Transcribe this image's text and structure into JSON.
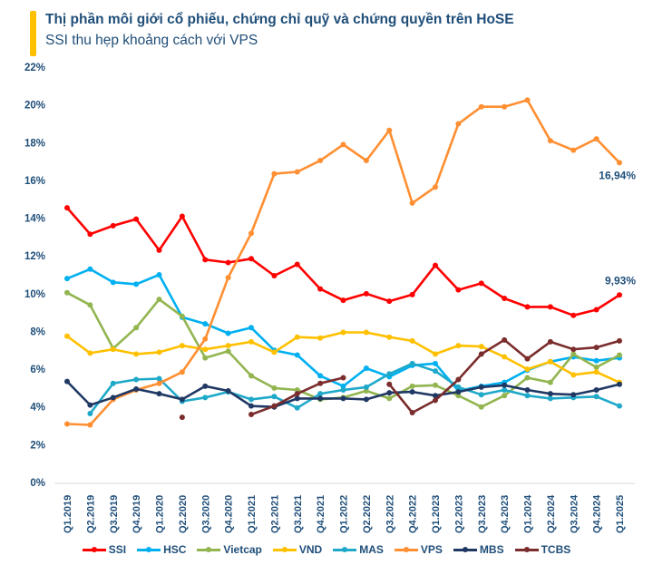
{
  "header": {
    "title": "Thị phần môi giới cổ phiếu, chứng chỉ quỹ và chứng quyền trên HoSE",
    "subtitle": "SSI thu hẹp khoảng cách với VPS",
    "accent_color": "#FFC000"
  },
  "chart_data": {
    "type": "line",
    "title": "Thị phần môi giới cổ phiếu, chứng chỉ quỹ và chứng quyền trên HoSE",
    "subtitle": "SSI thu hẹp khoảng cách với VPS",
    "xlabel": "",
    "ylabel": "",
    "ylim": [
      0,
      22
    ],
    "y_ticks": [
      "0%",
      "2%",
      "4%",
      "6%",
      "8%",
      "10%",
      "12%",
      "14%",
      "16%",
      "18%",
      "20%",
      "22%"
    ],
    "y_tick_values": [
      0,
      2,
      4,
      6,
      8,
      10,
      12,
      14,
      16,
      18,
      20,
      22
    ],
    "grid": false,
    "legend_position": "bottom",
    "categories": [
      "Q1.2019",
      "Q2.2019",
      "Q3.2019",
      "Q4.2019",
      "Q1.2020",
      "Q2.2020",
      "Q3.2020",
      "Q4.2020",
      "Q1.2021",
      "Q2.2021",
      "Q3.2021",
      "Q4.2021",
      "Q1.2022",
      "Q2.2022",
      "Q3.2022",
      "Q4.2022",
      "Q1.2023",
      "Q2.2023",
      "Q3.2023",
      "Q4.2023",
      "Q1.2024",
      "Q2.2024",
      "Q3.2024",
      "Q4.2024",
      "Q1.2025"
    ],
    "series": [
      {
        "name": "SSI",
        "color": "#FF0000",
        "values": [
          14.55,
          13.15,
          13.6,
          13.95,
          12.3,
          14.1,
          11.8,
          11.65,
          11.85,
          10.95,
          11.55,
          10.25,
          9.65,
          10.0,
          9.6,
          9.95,
          11.5,
          10.2,
          10.55,
          9.75,
          9.3,
          9.3,
          8.85,
          9.15,
          9.93
        ]
      },
      {
        "name": "HSC",
        "color": "#00B0F0",
        "values": [
          10.8,
          11.3,
          10.6,
          10.5,
          11.0,
          8.75,
          8.4,
          7.9,
          8.2,
          7.0,
          6.75,
          5.65,
          5.1,
          6.05,
          5.6,
          6.2,
          6.3,
          4.85,
          5.1,
          5.3,
          5.95,
          6.4,
          6.65,
          6.45,
          6.6
        ]
      },
      {
        "name": "Vietcap",
        "color": "#92B550",
        "values": [
          10.05,
          9.4,
          7.1,
          8.2,
          9.7,
          8.8,
          6.6,
          6.95,
          5.65,
          5.0,
          4.9,
          4.4,
          4.5,
          4.85,
          4.45,
          5.1,
          5.15,
          4.6,
          4.0,
          4.6,
          5.55,
          5.3,
          6.8,
          6.1,
          6.75
        ]
      },
      {
        "name": "VND",
        "color": "#FFC000",
        "values": [
          7.75,
          6.85,
          7.05,
          6.8,
          6.9,
          7.25,
          7.05,
          7.25,
          7.45,
          6.9,
          7.7,
          7.65,
          7.95,
          7.95,
          7.7,
          7.5,
          6.8,
          7.25,
          7.2,
          6.65,
          6.0,
          6.4,
          5.7,
          5.85,
          5.3
        ]
      },
      {
        "name": "MAS",
        "color": "#1FA9C9",
        "values": [
          null,
          3.65,
          5.25,
          5.45,
          5.5,
          4.3,
          4.5,
          4.8,
          4.4,
          4.55,
          3.95,
          4.7,
          4.9,
          5.05,
          5.75,
          6.3,
          5.9,
          5.05,
          4.65,
          4.9,
          4.6,
          4.45,
          4.5,
          4.55,
          4.05
        ]
      },
      {
        "name": "VPS",
        "color": "#FF8F32",
        "values": [
          3.1,
          3.05,
          4.4,
          4.9,
          5.25,
          5.85,
          7.6,
          10.85,
          13.2,
          16.35,
          16.45,
          17.05,
          17.9,
          17.05,
          18.65,
          14.8,
          15.65,
          19.0,
          19.9,
          19.9,
          20.25,
          18.1,
          17.6,
          18.2,
          16.94
        ]
      },
      {
        "name": "MBS",
        "color": "#203864",
        "values": [
          5.35,
          4.1,
          4.5,
          4.95,
          4.7,
          4.4,
          5.1,
          4.85,
          4.05,
          4.0,
          4.45,
          4.45,
          4.45,
          4.4,
          4.75,
          4.8,
          4.6,
          4.8,
          5.05,
          5.15,
          4.9,
          4.7,
          4.65,
          4.9,
          5.2
        ]
      },
      {
        "name": "TCBS",
        "color": "#7B2C2C",
        "values": [
          null,
          null,
          null,
          null,
          null,
          3.45,
          null,
          null,
          3.6,
          4.05,
          4.7,
          5.25,
          5.55,
          null,
          5.2,
          3.7,
          4.35,
          5.45,
          6.8,
          7.55,
          6.55,
          7.45,
          7.05,
          7.15,
          7.5
        ]
      }
    ],
    "annotations": [
      {
        "series": "VPS",
        "category": "Q1.2025",
        "text": "16,94%"
      },
      {
        "series": "SSI",
        "category": "Q1.2025",
        "text": "9,93%"
      }
    ]
  },
  "legend": [
    {
      "label": "SSI",
      "color": "#FF0000"
    },
    {
      "label": "HSC",
      "color": "#00B0F0"
    },
    {
      "label": "Vietcap",
      "color": "#92B550"
    },
    {
      "label": "VND",
      "color": "#FFC000"
    },
    {
      "label": "MAS",
      "color": "#1FA9C9"
    },
    {
      "label": "VPS",
      "color": "#FF8F32"
    },
    {
      "label": "MBS",
      "color": "#203864"
    },
    {
      "label": "TCBS",
      "color": "#7B2C2C"
    }
  ]
}
